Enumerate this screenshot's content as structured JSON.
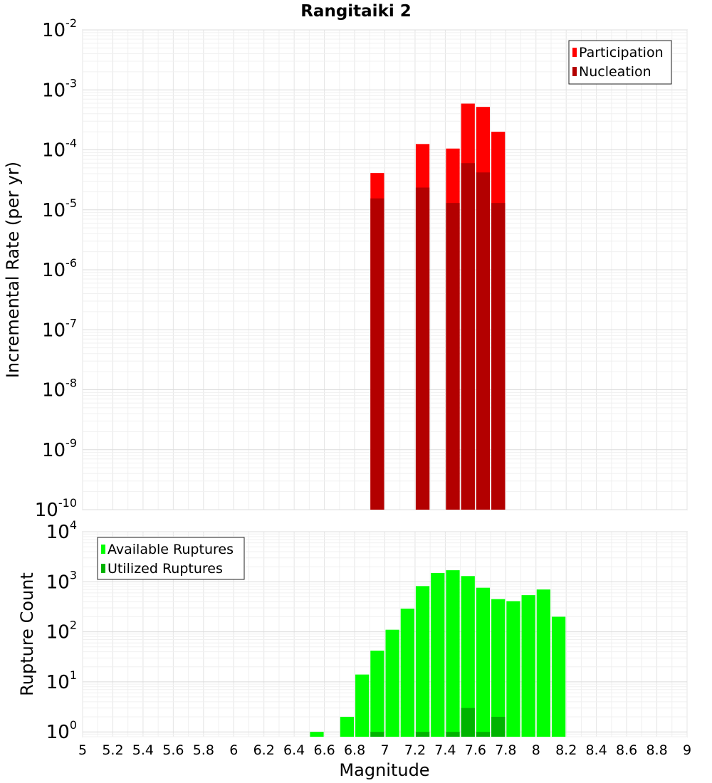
{
  "chart_data": {
    "title": "Rangitaiki 2",
    "xlabel": "Magnitude",
    "xlim": [
      5,
      9
    ],
    "x_ticks": [
      "5",
      "5.2",
      "5.4",
      "5.6",
      "5.8",
      "6",
      "6.2",
      "6.4",
      "6.6",
      "6.8",
      "7",
      "7.2",
      "7.4",
      "7.6",
      "7.8",
      "8",
      "8.2",
      "8.4",
      "8.6",
      "8.8",
      "9"
    ],
    "bin_width": 0.1,
    "panels": [
      {
        "type": "bar",
        "ylabel": "Incremental Rate (per yr)",
        "yscale": "log",
        "ylim": [
          1e-10,
          0.01
        ],
        "y_exponents": [
          -10,
          -9,
          -8,
          -7,
          -6,
          -5,
          -4,
          -3,
          -2
        ],
        "grid": true,
        "legend_position": "top-right",
        "series": [
          {
            "name": "Participation",
            "color": "#ff0000",
            "points": [
              {
                "x": 6.95,
                "y": 4.1e-05
              },
              {
                "x": 7.25,
                "y": 0.000125
              },
              {
                "x": 7.45,
                "y": 0.000105
              },
              {
                "x": 7.55,
                "y": 0.00059
              },
              {
                "x": 7.65,
                "y": 0.00052
              },
              {
                "x": 7.75,
                "y": 0.0002
              }
            ]
          },
          {
            "name": "Nucleation",
            "color": "#b30000",
            "points": [
              {
                "x": 6.95,
                "y": 1.55e-05
              },
              {
                "x": 7.25,
                "y": 2.35e-05
              },
              {
                "x": 7.45,
                "y": 1.3e-05
              },
              {
                "x": 7.55,
                "y": 6e-05
              },
              {
                "x": 7.65,
                "y": 4.2e-05
              },
              {
                "x": 7.75,
                "y": 1.3e-05
              }
            ]
          }
        ]
      },
      {
        "type": "bar",
        "ylabel": "Rupture Count",
        "yscale": "log",
        "ylim": [
          0.8,
          10000
        ],
        "y_exponents": [
          0,
          1,
          2,
          3,
          4
        ],
        "grid": true,
        "legend_position": "top-left",
        "series": [
          {
            "name": "Available Ruptures",
            "color": "#00ff00",
            "points": [
              {
                "x": 6.55,
                "y": 1
              },
              {
                "x": 6.75,
                "y": 2
              },
              {
                "x": 6.85,
                "y": 14
              },
              {
                "x": 6.95,
                "y": 42
              },
              {
                "x": 7.05,
                "y": 110
              },
              {
                "x": 7.15,
                "y": 290
              },
              {
                "x": 7.25,
                "y": 820
              },
              {
                "x": 7.35,
                "y": 1500
              },
              {
                "x": 7.45,
                "y": 1700
              },
              {
                "x": 7.55,
                "y": 1300
              },
              {
                "x": 7.65,
                "y": 760
              },
              {
                "x": 7.75,
                "y": 450
              },
              {
                "x": 7.85,
                "y": 410
              },
              {
                "x": 7.95,
                "y": 540
              },
              {
                "x": 8.05,
                "y": 700
              },
              {
                "x": 8.15,
                "y": 200
              }
            ]
          },
          {
            "name": "Utilized Ruptures",
            "color": "#00b300",
            "points": [
              {
                "x": 6.95,
                "y": 1
              },
              {
                "x": 7.25,
                "y": 1
              },
              {
                "x": 7.45,
                "y": 1
              },
              {
                "x": 7.55,
                "y": 3
              },
              {
                "x": 7.65,
                "y": 1
              },
              {
                "x": 7.75,
                "y": 2
              }
            ]
          }
        ]
      }
    ]
  }
}
